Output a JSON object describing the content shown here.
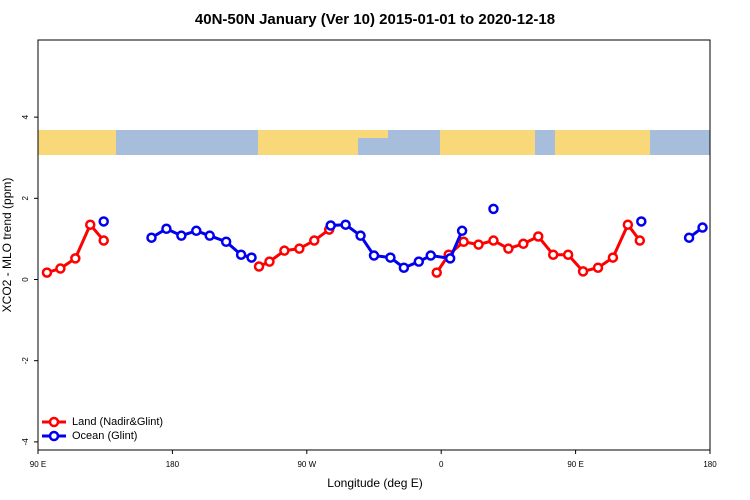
{
  "chart_data": {
    "type": "line",
    "title": "40N-50N January (Ver 10)   2015-01-01 to 2020-12-18",
    "xlabel": "Longitude (deg E)",
    "ylabel": "XCO2 - MLO trend (ppm)",
    "xlim": [
      90,
      540
    ],
    "ylim": [
      -4.2,
      5.9
    ],
    "xticks": [
      {
        "value": 90,
        "label": "90 E"
      },
      180,
      {
        "value": 270,
        "label": "90 W"
      },
      {
        "value": 360,
        "label": "0"
      },
      {
        "value": 450,
        "label": "90 E"
      },
      {
        "value": 540,
        "label": "180"
      }
    ],
    "yticks": [
      -4,
      -2,
      0,
      2,
      4
    ],
    "legend": "bottom left",
    "series": [
      {
        "name": "Land (Nadir&Glint)",
        "color": "#ff0000",
        "x": [
          96,
          105,
          115,
          125,
          134,
          null,
          238,
          245,
          255,
          265,
          275,
          285,
          null,
          357,
          365,
          375,
          385,
          395,
          405,
          415,
          425,
          435,
          445,
          455,
          465,
          475,
          485,
          493
        ],
        "values": [
          0.17,
          0.27,
          0.52,
          1.35,
          0.96,
          null,
          0.32,
          0.44,
          0.71,
          0.76,
          0.96,
          1.23,
          null,
          0.17,
          0.61,
          0.93,
          0.86,
          0.96,
          0.76,
          0.88,
          1.06,
          0.61,
          0.61,
          0.2,
          0.29,
          0.54,
          1.35,
          0.96
        ]
      },
      {
        "name": "Ocean (Glint)",
        "color": "#0000ee",
        "x": [
          134,
          null,
          166,
          176,
          186,
          196,
          205,
          216,
          226,
          233,
          null,
          286,
          296,
          306,
          315,
          326,
          335,
          345,
          353,
          366,
          374,
          null,
          395,
          null,
          494,
          null,
          526,
          535
        ],
        "values": [
          1.43,
          null,
          1.03,
          1.25,
          1.08,
          1.2,
          1.08,
          0.93,
          0.61,
          0.54,
          null,
          1.33,
          1.35,
          1.08,
          0.59,
          0.54,
          0.29,
          0.44,
          0.59,
          0.52,
          1.2,
          null,
          1.74,
          null,
          1.43,
          null,
          1.03,
          1.28
        ]
      }
    ]
  }
}
